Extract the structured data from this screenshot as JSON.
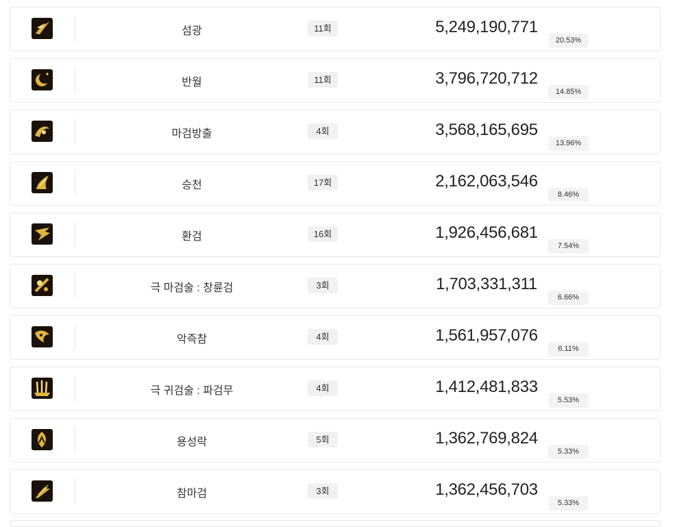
{
  "skills": [
    {
      "name": "섬광",
      "count": "11회",
      "damage": "5,249,190,771",
      "share": "20.53%",
      "icon": "bird-slash-skill-icon"
    },
    {
      "name": "반월",
      "count": "11회",
      "damage": "3,796,720,712",
      "share": "14.85%",
      "icon": "crescent-moon-skill-icon"
    },
    {
      "name": "마검방출",
      "count": "4회",
      "damage": "3,568,165,695",
      "share": "13.96%",
      "icon": "demon-sword-release-skill-icon"
    },
    {
      "name": "승천",
      "count": "17회",
      "damage": "2,162,063,546",
      "share": "8.46%",
      "icon": "ascension-skill-icon"
    },
    {
      "name": "환검",
      "count": "16회",
      "damage": "1,926,456,681",
      "share": "7.54%",
      "icon": "phantom-sword-skill-icon"
    },
    {
      "name": "극 마검술 : 창륜검",
      "count": "3회",
      "damage": "1,703,331,311",
      "share": "6.66%",
      "icon": "spear-wheel-sword-skill-icon"
    },
    {
      "name": "악즉참",
      "count": "4회",
      "damage": "1,561,957,076",
      "share": "6.11%",
      "icon": "evil-slash-skill-icon"
    },
    {
      "name": "극 귀검술 : 파검무",
      "count": "4회",
      "damage": "1,412,481,833",
      "share": "5.53%",
      "icon": "sword-dance-skill-icon"
    },
    {
      "name": "용성락",
      "count": "5회",
      "damage": "1,362,769,824",
      "share": "5.33%",
      "icon": "dragon-star-fall-skill-icon"
    },
    {
      "name": "참마검",
      "count": "3회",
      "damage": "1,362,456,703",
      "share": "5.33%",
      "icon": "demon-slaying-sword-skill-icon"
    }
  ],
  "colors": {
    "icon_bg": "#1a1208",
    "icon_gold": "#e0b440",
    "icon_glow": "#f6dc7a"
  }
}
